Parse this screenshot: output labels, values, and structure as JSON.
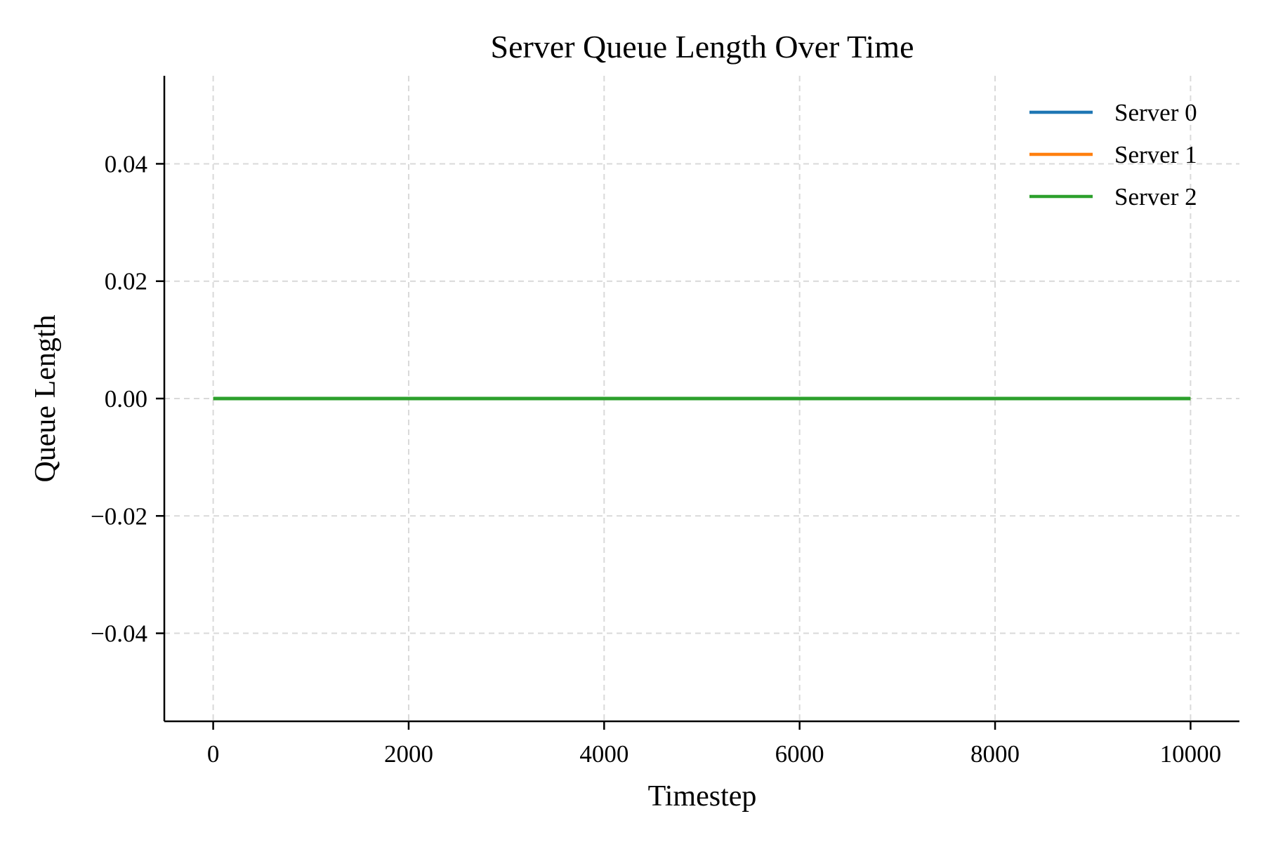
{
  "chart_data": {
    "type": "line",
    "title": "Server Queue Length Over Time",
    "xlabel": "Timestep",
    "ylabel": "Queue Length",
    "xlim": [
      -500,
      10500
    ],
    "ylim": [
      -0.055,
      0.055
    ],
    "x_ticks": [
      0,
      2000,
      4000,
      6000,
      8000,
      10000
    ],
    "x_tick_labels": [
      "0",
      "2000",
      "4000",
      "6000",
      "8000",
      "10000"
    ],
    "y_ticks": [
      -0.04,
      -0.02,
      0.0,
      0.02,
      0.04
    ],
    "y_tick_labels": [
      "−0.04",
      "−0.02",
      "0.00",
      "0.02",
      "0.04"
    ],
    "grid": true,
    "legend_position": "top-right",
    "series": [
      {
        "name": "Server 0",
        "color": "#1f77b4",
        "x": [
          0,
          10000
        ],
        "y": [
          0,
          0
        ]
      },
      {
        "name": "Server 1",
        "color": "#ff7f0e",
        "x": [
          0,
          10000
        ],
        "y": [
          0,
          0
        ]
      },
      {
        "name": "Server 2",
        "color": "#2ca02c",
        "x": [
          0,
          10000
        ],
        "y": [
          0,
          0
        ]
      }
    ]
  }
}
